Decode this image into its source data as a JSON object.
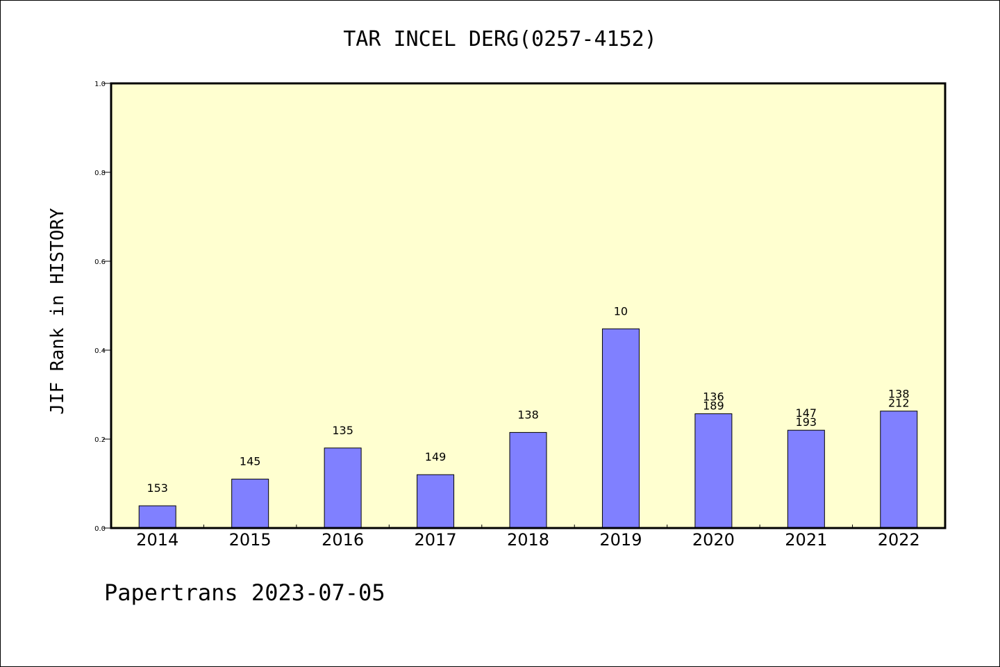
{
  "chart_data": {
    "type": "bar",
    "title": "TAR INCEL DERG(0257-4152)",
    "ylabel": "JIF Rank in HISTORY",
    "xlabel": "",
    "ylim": [
      0,
      1.0
    ],
    "yticks": [
      "0.0",
      "0.2",
      "0.4",
      "0.6",
      "0.8",
      "1.0"
    ],
    "categories": [
      "2014",
      "2015",
      "2016",
      "2017",
      "2018",
      "2019",
      "2020",
      "2021",
      "2022"
    ],
    "values": [
      0.05,
      0.11,
      0.18,
      0.12,
      0.215,
      0.448,
      0.257,
      0.22,
      0.263
    ],
    "bar_labels": [
      [
        "153"
      ],
      [
        "145"
      ],
      [
        "135"
      ],
      [
        "149"
      ],
      [
        "138"
      ],
      [
        "10"
      ],
      [
        "136",
        "189"
      ],
      [
        "147",
        "193"
      ],
      [
        "138",
        "212"
      ]
    ],
    "colors": {
      "plot_bg": "#ffffd0",
      "bar": "#8080ff"
    },
    "footer": "Papertrans 2023-07-05"
  }
}
